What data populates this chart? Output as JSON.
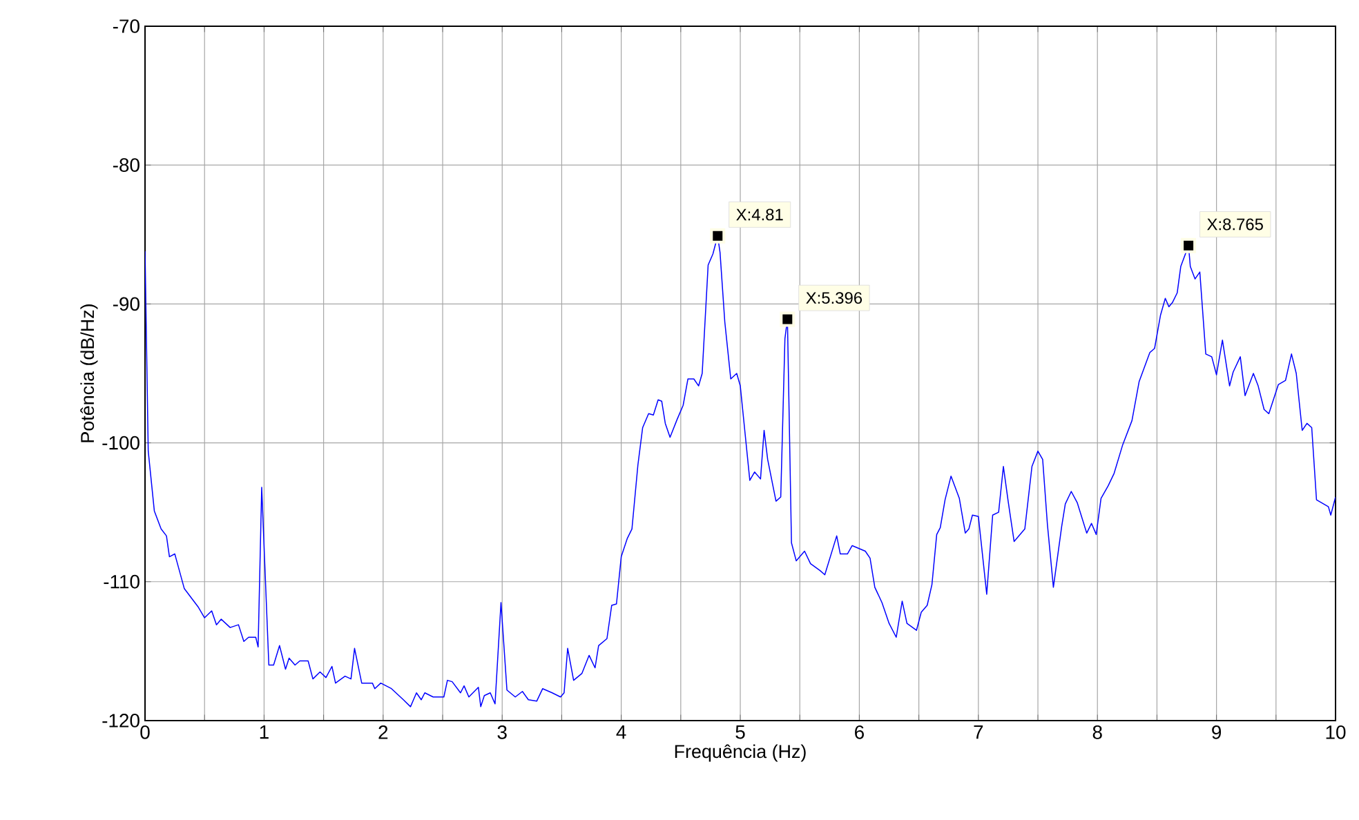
{
  "chart_data": {
    "type": "line",
    "xlabel": "Frequência (Hz)",
    "ylabel": "Potência (dB/Hz)",
    "xlim": [
      0,
      10
    ],
    "ylim": [
      -120,
      -70
    ],
    "xticks": [
      0,
      {
        "value": 0.5,
        "label": null
      },
      1,
      {
        "value": 1.5,
        "label": null
      },
      2,
      {
        "value": 2.5,
        "label": null
      },
      3,
      {
        "value": 3.5,
        "label": null
      },
      4,
      {
        "value": 4.5,
        "label": null
      },
      5,
      {
        "value": 5.5,
        "label": null
      },
      6,
      {
        "value": 6.5,
        "label": null
      },
      7,
      {
        "value": 7.5,
        "label": null
      },
      8,
      {
        "value": 8.5,
        "label": null
      },
      9,
      {
        "value": 9.5,
        "label": null
      },
      10
    ],
    "yticks": [
      -120,
      -110,
      -100,
      -90,
      -80,
      -70
    ],
    "grid": true,
    "marker": "none",
    "line_style": "solid",
    "annotations": [
      {
        "text": "X:4.81",
        "x": 4.81,
        "y": -85.1
      },
      {
        "text": "X:5.396",
        "x": 5.396,
        "y": -91.1
      },
      {
        "text": "X:8.765",
        "x": 8.765,
        "y": -85.8
      }
    ],
    "series": [
      {
        "color": "#0000ff",
        "x": [
          0,
          0.027,
          0.078,
          0.135,
          0.18,
          0.205,
          0.25,
          0.33,
          0.445,
          0.5,
          0.56,
          0.6,
          0.64,
          0.715,
          0.785,
          0.83,
          0.87,
          0.93,
          0.95,
          0.98,
          1.04,
          1.08,
          1.13,
          1.18,
          1.21,
          1.26,
          1.3,
          1.37,
          1.41,
          1.47,
          1.52,
          1.57,
          1.6,
          1.68,
          1.73,
          1.76,
          1.82,
          1.91,
          1.93,
          1.98,
          2.07,
          2.17,
          2.23,
          2.28,
          2.32,
          2.35,
          2.42,
          2.51,
          2.54,
          2.58,
          2.65,
          2.68,
          2.72,
          2.8,
          2.82,
          2.85,
          2.9,
          2.94,
          2.99,
          3.04,
          3.11,
          3.17,
          3.22,
          3.29,
          3.34,
          3.42,
          3.49,
          3.52,
          3.55,
          3.6,
          3.67,
          3.73,
          3.78,
          3.81,
          3.88,
          3.92,
          3.96,
          4.0,
          4.05,
          4.09,
          4.14,
          4.18,
          4.23,
          4.27,
          4.31,
          4.34,
          4.37,
          4.41,
          4.47,
          4.52,
          4.56,
          4.61,
          4.65,
          4.68,
          4.73,
          4.77,
          4.81,
          4.83,
          4.87,
          4.92,
          4.97,
          5.0,
          5.04,
          5.08,
          5.12,
          5.17,
          5.2,
          5.23,
          5.3,
          5.34,
          5.375,
          5.396,
          5.43,
          5.47,
          5.54,
          5.59,
          5.67,
          5.71,
          5.81,
          5.84,
          5.9,
          5.94,
          6.05,
          6.09,
          6.13,
          6.19,
          6.25,
          6.31,
          6.36,
          6.4,
          6.48,
          6.52,
          6.57,
          6.61,
          6.65,
          6.68,
          6.72,
          6.77,
          6.84,
          6.89,
          6.92,
          6.95,
          7.0,
          7.07,
          7.12,
          7.17,
          7.21,
          7.25,
          7.3,
          7.39,
          7.45,
          7.5,
          7.54,
          7.58,
          7.63,
          7.7,
          7.73,
          7.78,
          7.83,
          7.91,
          7.95,
          7.99,
          8.03,
          8.09,
          8.14,
          8.21,
          8.29,
          8.35,
          8.44,
          8.48,
          8.53,
          8.57,
          8.6,
          8.63,
          8.67,
          8.7,
          8.765,
          8.78,
          8.82,
          8.86,
          8.91,
          8.96,
          9.0,
          9.05,
          9.11,
          9.14,
          9.2,
          9.24,
          9.31,
          9.35,
          9.4,
          9.44,
          9.52,
          9.58,
          9.63,
          9.67,
          9.72,
          9.76,
          9.8,
          9.84,
          9.94,
          9.96,
          10.0
        ],
        "values": [
          -86.2,
          -100.6,
          -104.9,
          -106.2,
          -106.7,
          -108.2,
          -108.0,
          -110.5,
          -111.8,
          -112.6,
          -112.1,
          -113.1,
          -112.7,
          -113.3,
          -113.1,
          -114.3,
          -114.0,
          -114.0,
          -114.7,
          -103.2,
          -116.0,
          -116.0,
          -114.6,
          -116.3,
          -115.5,
          -116.0,
          -115.7,
          -115.7,
          -117.0,
          -116.5,
          -116.9,
          -116.1,
          -117.3,
          -116.8,
          -117.0,
          -114.8,
          -117.3,
          -117.3,
          -117.7,
          -117.3,
          -117.7,
          -118.5,
          -119.0,
          -118.0,
          -118.5,
          -118.0,
          -118.3,
          -118.3,
          -117.1,
          -117.2,
          -118.0,
          -117.5,
          -118.3,
          -117.6,
          -119.0,
          -118.2,
          -118.0,
          -118.8,
          -111.5,
          -117.8,
          -118.3,
          -117.9,
          -118.5,
          -118.6,
          -117.7,
          -118.0,
          -118.3,
          -118.0,
          -114.8,
          -117.1,
          -116.6,
          -115.3,
          -116.2,
          -114.6,
          -114.1,
          -111.7,
          -111.6,
          -108.2,
          -106.9,
          -106.2,
          -101.6,
          -98.9,
          -97.9,
          -98.0,
          -96.9,
          -97.0,
          -98.6,
          -99.6,
          -98.3,
          -97.3,
          -95.4,
          -95.4,
          -95.9,
          -95.0,
          -87.2,
          -86.4,
          -85.1,
          -86.3,
          -91.3,
          -95.4,
          -95.0,
          -95.9,
          -99.3,
          -102.7,
          -102.1,
          -102.6,
          -99.1,
          -101.2,
          -104.2,
          -103.9,
          -92.5,
          -91.1,
          -107.2,
          -108.5,
          -107.8,
          -108.7,
          -109.2,
          -109.5,
          -106.7,
          -108.0,
          -108.0,
          -107.4,
          -107.8,
          -108.3,
          -110.4,
          -111.5,
          -113.0,
          -114.0,
          -111.4,
          -113.0,
          -113.5,
          -112.2,
          -111.7,
          -110.2,
          -106.6,
          -106.1,
          -104.1,
          -102.4,
          -104.0,
          -106.5,
          -106.2,
          -105.2,
          -105.3,
          -110.9,
          -105.2,
          -105.0,
          -101.7,
          -104.2,
          -107.1,
          -106.2,
          -101.7,
          -100.6,
          -101.2,
          -105.9,
          -110.4,
          -106.0,
          -104.4,
          -103.5,
          -104.3,
          -106.5,
          -105.8,
          -106.6,
          -104.0,
          -103.1,
          -102.2,
          -100.2,
          -98.4,
          -95.6,
          -93.5,
          -93.2,
          -90.8,
          -89.6,
          -90.2,
          -89.9,
          -89.2,
          -87.3,
          -85.8,
          -87.3,
          -88.2,
          -87.7,
          -93.6,
          -93.8,
          -95.1,
          -92.6,
          -95.9,
          -94.9,
          -93.8,
          -96.6,
          -95.0,
          -95.9,
          -97.6,
          -97.9,
          -95.8,
          -95.5,
          -93.6,
          -95.0,
          -99.1,
          -98.6,
          -98.9,
          -104.1,
          -104.6,
          -105.2,
          -103.9
        ]
      }
    ]
  }
}
